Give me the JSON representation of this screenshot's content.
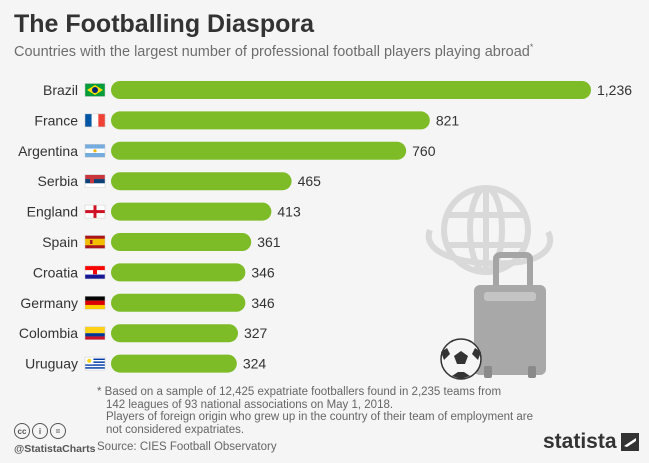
{
  "header": {
    "title": "The Footballing Diaspora",
    "subtitle": "Countries with the largest number of professional football players playing abroad",
    "subtitle_mark": "*"
  },
  "colors": {
    "bar": "#7dbb27",
    "background": "#f5f5f5",
    "text": "#333333",
    "illustration": "#d9d9d9"
  },
  "chart_data": {
    "type": "bar",
    "orientation": "horizontal",
    "categories": [
      "Brazil",
      "France",
      "Argentina",
      "Serbia",
      "England",
      "Spain",
      "Croatia",
      "Germany",
      "Colombia",
      "Uruguay"
    ],
    "values": [
      1236,
      821,
      760,
      465,
      413,
      361,
      346,
      346,
      327,
      324
    ],
    "value_labels": [
      "1,236",
      "821",
      "760",
      "465",
      "413",
      "361",
      "346",
      "346",
      "327",
      "324"
    ],
    "flags": [
      "brazil-flag",
      "france-flag",
      "argentina-flag",
      "serbia-flag",
      "england-flag",
      "spain-flag",
      "croatia-flag",
      "germany-flag",
      "colombia-flag",
      "uruguay-flag"
    ],
    "xlim": [
      0,
      1236
    ],
    "grid": false
  },
  "footnote": {
    "line1": "* Based on a sample of 12,425 expatriate footballers found in 2,235 teams from",
    "line2": "142 leagues of 93 national associations on May 1, 2018.",
    "line3": "Players of foreign origin who grew up in the country of their team of employment are",
    "line4": "not considered expatriates."
  },
  "footer": {
    "handle": "@StatistaCharts",
    "source": "Source: CIES Football Observatory",
    "brand": "statista",
    "license_icons": [
      "cc",
      "i",
      "="
    ]
  }
}
